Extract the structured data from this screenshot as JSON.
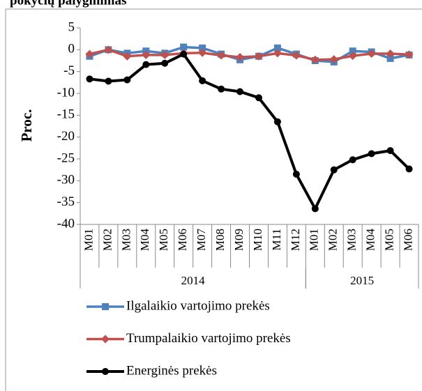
{
  "chart_data": {
    "type": "line",
    "title": "pokyčių palyginimas",
    "y_label": "Proc.",
    "categories": [
      "M01",
      "M02",
      "M03",
      "M04",
      "M05",
      "M06",
      "M07",
      "M08",
      "M09",
      "M10",
      "M11",
      "M12",
      "M01",
      "M02",
      "M03",
      "M04",
      "M05",
      "M06"
    ],
    "x_groups": [
      {
        "label": "2014",
        "span": 12
      },
      {
        "label": "2015",
        "span": 6
      }
    ],
    "ylim": [
      -40,
      5
    ],
    "yticks": [
      5,
      0,
      -5,
      -10,
      -15,
      -20,
      -25,
      -30,
      -35,
      -40
    ],
    "series": [
      {
        "name": "Ilgalaikio vartojimo prekės",
        "color": "#4f81bd",
        "marker": "square",
        "values": [
          -1.5,
          0,
          -0.8,
          -0.3,
          -0.8,
          0.6,
          0.4,
          -1,
          -2.3,
          -1.5,
          0.4,
          -1,
          -2.5,
          -2.8,
          -0.3,
          -0.5,
          -2,
          -1.2
        ]
      },
      {
        "name": "Trumpalaikio vartojimo prekės",
        "color": "#c0504d",
        "marker": "diamond",
        "values": [
          -1,
          0,
          -1.5,
          -1.2,
          -1.2,
          -0.8,
          -0.7,
          -1.3,
          -1.7,
          -1.5,
          -0.8,
          -1.3,
          -2.3,
          -2.2,
          -1.4,
          -0.9,
          -0.9,
          -1.1
        ]
      },
      {
        "name": "Energinės prekės",
        "color": "#000000",
        "marker": "circle",
        "values": [
          -6.7,
          -7.2,
          -6.9,
          -3.4,
          -3.1,
          -1,
          -7.1,
          -9,
          -9.6,
          -11,
          -16.5,
          -28.5,
          -36.4,
          -27.5,
          -25.2,
          -23.8,
          -23.1,
          -27.3
        ]
      }
    ]
  }
}
